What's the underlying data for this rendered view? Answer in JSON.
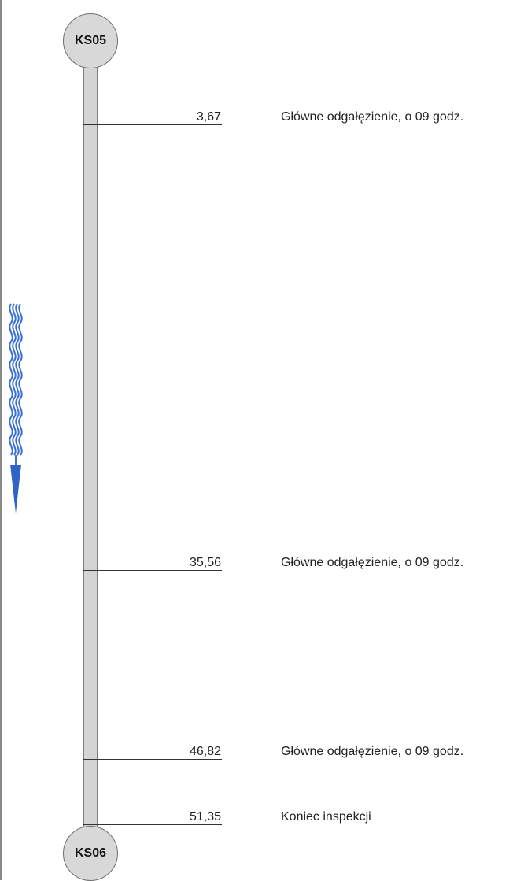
{
  "manholes": {
    "start": "KS05",
    "end": "KS06"
  },
  "observations": [
    {
      "distance": "3,67",
      "description": "Główne odgałęzienie, o 09 godz."
    },
    {
      "distance": "35,56",
      "description": "Główne odgałęzienie, o 09 godz."
    },
    {
      "distance": "46,82",
      "description": "Główne odgałęzienie, o 09 godz."
    },
    {
      "distance": "51,35",
      "description": "Koniec inspekcji"
    }
  ],
  "flow": {
    "icon": "flow-direction-arrow-icon",
    "direction": "down",
    "color": "#2f63c8"
  }
}
